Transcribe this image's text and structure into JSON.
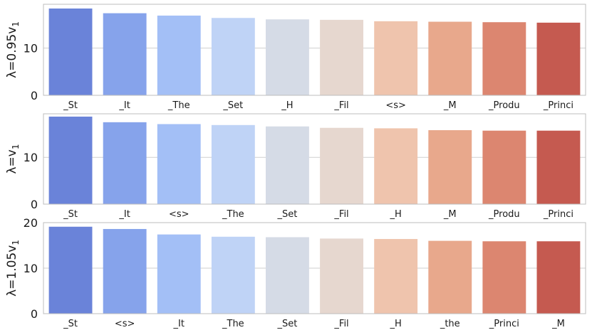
{
  "chart_data": [
    {
      "type": "bar",
      "ylabel": "λ=0.95v₁",
      "ylabel_parts": {
        "base": "λ=0.95v",
        "sub": "1"
      },
      "ylim": [
        0,
        19.3
      ],
      "yticks": [
        0,
        10
      ],
      "grid": "horizontal",
      "categories": [
        "_St",
        "_It",
        "_The",
        "_Set",
        "_H",
        "_Fil",
        "<s>",
        "_M",
        "_Produ",
        "_Princi"
      ],
      "values": [
        18.4,
        17.4,
        16.9,
        16.4,
        16.1,
        16.0,
        15.7,
        15.6,
        15.5,
        15.4
      ],
      "colors": [
        "#6a83d9",
        "#86a3eb",
        "#a3bff6",
        "#bfd3f6",
        "#d5dbe6",
        "#e6d7cf",
        "#efc4ad",
        "#e8a88c",
        "#dc8670",
        "#c55a50"
      ]
    },
    {
      "type": "bar",
      "ylabel": "λ=v₁",
      "ylabel_parts": {
        "base": "λ=v",
        "sub": "1"
      },
      "ylim": [
        0,
        19.3
      ],
      "yticks": [
        0,
        10
      ],
      "grid": "horizontal",
      "categories": [
        "_St",
        "_It",
        "<s>",
        "_The",
        "_Set",
        "_Fil",
        "_H",
        "_M",
        "_Produ",
        "_Princi"
      ],
      "values": [
        18.7,
        17.5,
        17.1,
        16.9,
        16.6,
        16.3,
        16.2,
        15.8,
        15.7,
        15.7
      ],
      "colors": [
        "#6a83d9",
        "#86a3eb",
        "#a3bff6",
        "#bfd3f6",
        "#d5dbe6",
        "#e6d7cf",
        "#efc4ad",
        "#e8a88c",
        "#dc8670",
        "#c55a50"
      ]
    },
    {
      "type": "bar",
      "ylabel": "λ=1.05v₁",
      "ylabel_parts": {
        "base": "λ=1.05v",
        "sub": "1"
      },
      "ylim": [
        0,
        20
      ],
      "yticks": [
        0,
        10,
        20
      ],
      "grid": "horizontal",
      "categories": [
        "_St",
        "<s>",
        "_It",
        "_The",
        "_Set",
        "_Fil",
        "_H",
        "_the",
        "_Princi",
        "_M"
      ],
      "values": [
        19.1,
        18.6,
        17.4,
        16.9,
        16.8,
        16.5,
        16.4,
        16.0,
        15.9,
        15.9
      ],
      "colors": [
        "#6a83d9",
        "#86a3eb",
        "#a3bff6",
        "#bfd3f6",
        "#d5dbe6",
        "#e6d7cf",
        "#efc4ad",
        "#e8a88c",
        "#dc8670",
        "#c55a50"
      ]
    }
  ]
}
